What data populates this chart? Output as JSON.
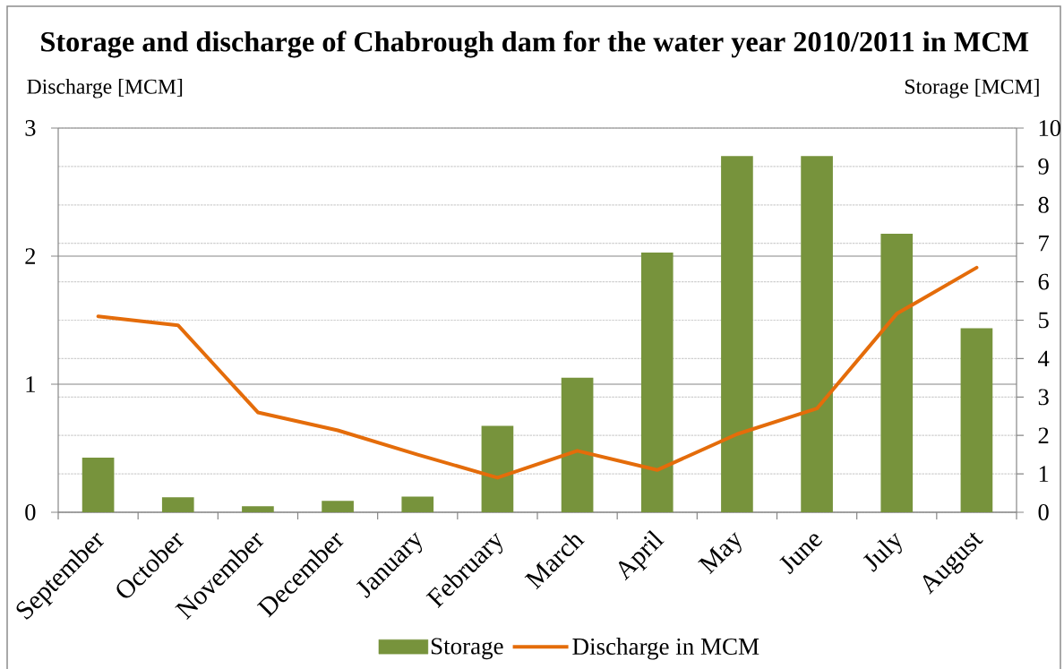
{
  "chart_data": {
    "type": "bar",
    "title": "Storage and discharge of Chabrough dam for the water year 2010/2011 in MCM",
    "ylabel": "Discharge [MCM]",
    "y2label": "Storage [MCM]",
    "categories": [
      "September",
      "October",
      "November",
      "December",
      "January",
      "February",
      "March",
      "April",
      "May",
      "June",
      "July",
      "August"
    ],
    "series": [
      {
        "name": "Storage",
        "axis": "y2",
        "color": "#77933c",
        "values": [
          1.42,
          0.39,
          0.16,
          0.3,
          0.41,
          2.25,
          3.5,
          6.76,
          9.27,
          9.27,
          7.25,
          4.79
        ]
      },
      {
        "name": "Discharge in MCM",
        "type": "line",
        "color": "#e46c0a",
        "values": [
          1.53,
          1.46,
          0.78,
          0.64,
          0.45,
          0.27,
          0.48,
          0.33,
          0.61,
          0.81,
          1.55,
          1.91
        ]
      }
    ],
    "ylim": [
      0,
      3
    ],
    "yticks": [
      0,
      1,
      2,
      3
    ],
    "y2lim": [
      0,
      10
    ],
    "y2ticks": [
      0,
      1,
      2,
      3,
      4,
      5,
      6,
      7,
      8,
      9,
      10
    ],
    "grid": "y",
    "legend": "bottom"
  }
}
